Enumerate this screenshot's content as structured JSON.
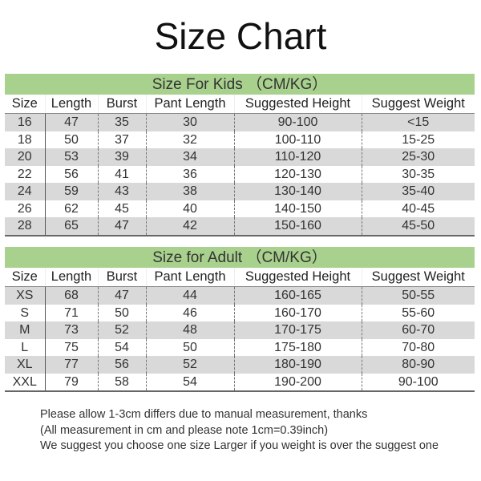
{
  "title": "Size Chart",
  "columns": [
    "Size",
    "Length",
    "Burst",
    "Pant Length",
    "Suggested Height",
    "Suggest Weight"
  ],
  "kids": {
    "heading": "Size For Kids （CM/KG）",
    "rows": [
      [
        "16",
        "47",
        "35",
        "30",
        "90-100",
        "<15"
      ],
      [
        "18",
        "50",
        "37",
        "32",
        "100-110",
        "15-25"
      ],
      [
        "20",
        "53",
        "39",
        "34",
        "110-120",
        "25-30"
      ],
      [
        "22",
        "56",
        "41",
        "36",
        "120-130",
        "30-35"
      ],
      [
        "24",
        "59",
        "43",
        "38",
        "130-140",
        "35-40"
      ],
      [
        "26",
        "62",
        "45",
        "40",
        "140-150",
        "40-45"
      ],
      [
        "28",
        "65",
        "47",
        "42",
        "150-160",
        "45-50"
      ]
    ]
  },
  "adult": {
    "heading": "Size for Adult （CM/KG）",
    "rows": [
      [
        "XS",
        "68",
        "47",
        "44",
        "160-165",
        "50-55"
      ],
      [
        "S",
        "71",
        "50",
        "46",
        "160-170",
        "55-60"
      ],
      [
        "M",
        "73",
        "52",
        "48",
        "170-175",
        "60-70"
      ],
      [
        "L",
        "75",
        "54",
        "50",
        "175-180",
        "70-80"
      ],
      [
        "XL",
        "77",
        "56",
        "52",
        "180-190",
        "80-90"
      ],
      [
        "XXL",
        "79",
        "58",
        "54",
        "190-200",
        "90-100"
      ]
    ]
  },
  "notes": [
    "Please allow 1-3cm differs due to manual measurement, thanks",
    "(All measurement in cm and please note 1cm=0.39inch)",
    "We suggest you choose one size Larger if you weight is over the suggest one"
  ],
  "colors": {
    "banner": "#a9d18e",
    "alt_row": "#d9d9d9"
  }
}
